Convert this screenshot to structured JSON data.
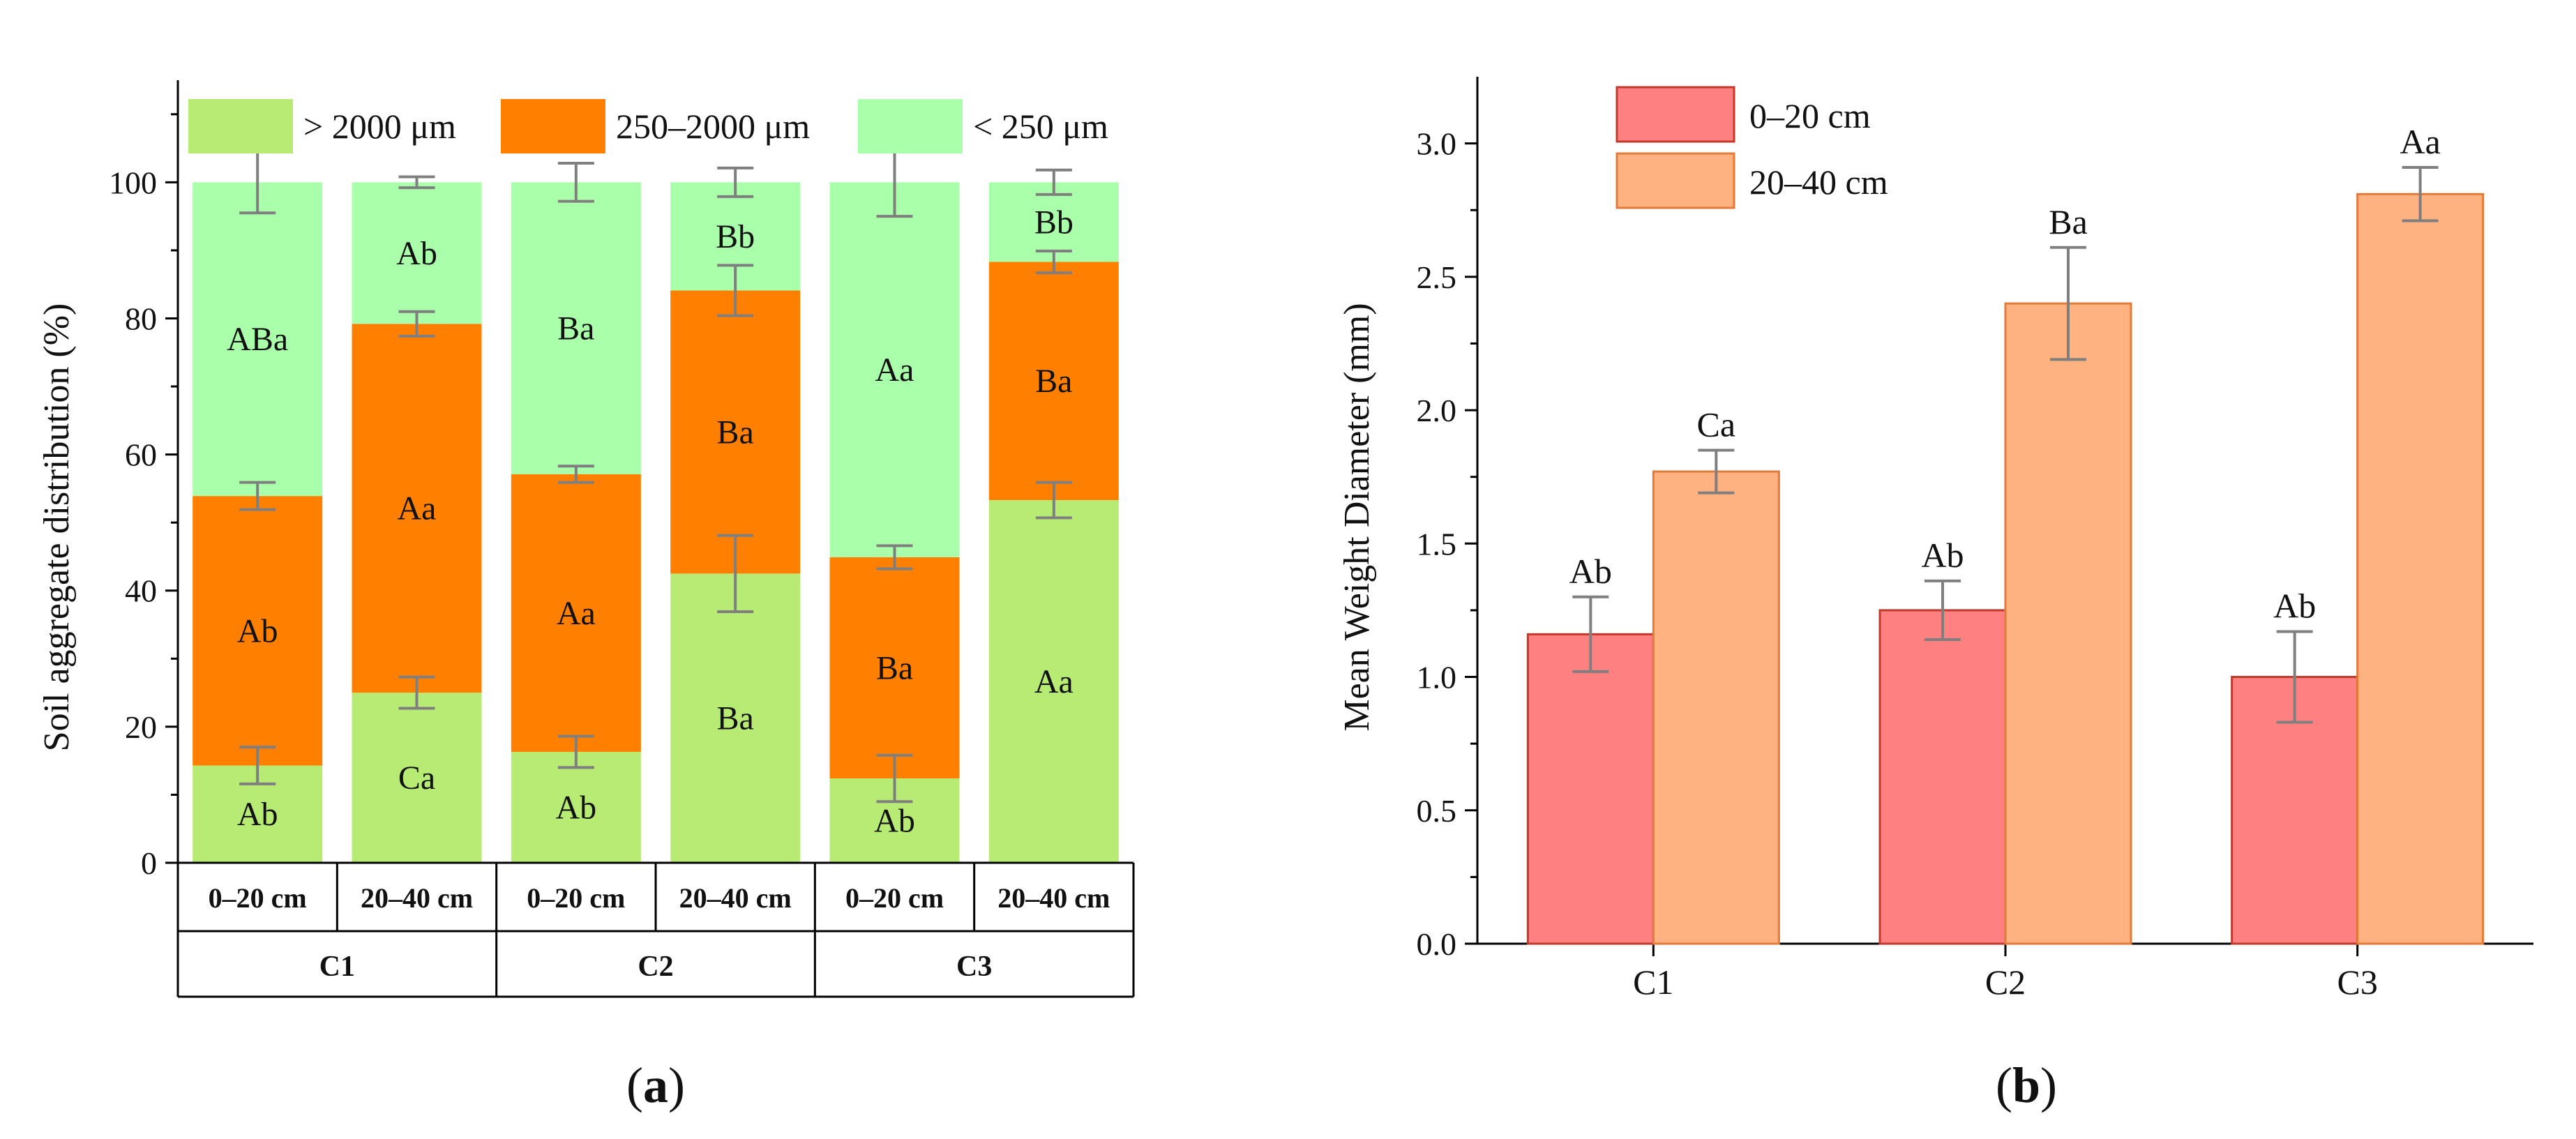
{
  "chart_data": [
    {
      "id": "a",
      "type": "bar",
      "stacked": true,
      "panel_label": "a",
      "ylabel": "Soil aggregate distribution (%)",
      "ylim": [
        0,
        115
      ],
      "yticks": [
        0,
        20,
        40,
        60,
        80,
        100
      ],
      "legend_position": "top",
      "categories": [
        "0–20 cm",
        "20–40 cm",
        "0–20 cm",
        "20–40 cm",
        "0–20 cm",
        "20–40 cm"
      ],
      "groups": [
        "C1",
        "C2",
        "C3"
      ],
      "series": [
        {
          "name": "> 2000 μm",
          "color": "#b8eb73",
          "values": [
            14.3,
            25.0,
            16.3,
            42.5,
            12.4,
            53.3
          ],
          "errors": [
            2.7,
            2.3,
            2.3,
            5.6,
            3.4,
            2.6
          ],
          "letters": [
            "Ab",
            "Ca",
            "Ab",
            "Ba",
            "Ab",
            "Aa"
          ]
        },
        {
          "name": "250–2000 μm",
          "color": "#ff8000",
          "values": [
            39.6,
            54.2,
            40.8,
            41.6,
            32.5,
            35.0
          ],
          "errors": [
            2.0,
            1.8,
            1.2,
            3.7,
            1.7,
            1.6
          ],
          "letters": [
            "Ab",
            "Aa",
            "Aa",
            "Ba",
            "Ba",
            "Ba"
          ]
        },
        {
          "name": "< 250 μm",
          "color": "#aaffaa",
          "values": [
            46.1,
            20.8,
            42.9,
            15.9,
            55.1,
            11.7
          ],
          "errors": [
            4.5,
            0.8,
            2.8,
            2.1,
            5.0,
            1.8
          ],
          "letters": [
            "ABa",
            "Ab",
            "Ba",
            "Bb",
            "Aa",
            "Bb"
          ]
        }
      ]
    },
    {
      "id": "b",
      "type": "bar",
      "panel_label": "b",
      "ylabel": "Mean Weight Diameter (mm)",
      "ylim": [
        0,
        3.25
      ],
      "yticks": [
        0.0,
        0.5,
        1.0,
        1.5,
        2.0,
        2.5,
        3.0
      ],
      "ytick_labels": [
        "0.0",
        "0.5",
        "1.0",
        "1.5",
        "2.0",
        "2.5",
        "3.0"
      ],
      "legend_position": "top-left",
      "categories": [
        "C1",
        "C2",
        "C3"
      ],
      "series": [
        {
          "name": "0–20 cm",
          "color": "#ff8080",
          "edge": "#c0392b",
          "values": [
            1.16,
            1.25,
            1.0
          ],
          "errors": [
            0.14,
            0.11,
            0.17
          ],
          "letters": [
            "Ab",
            "Ab",
            "Ab"
          ]
        },
        {
          "name": "20–40 cm",
          "color": "#ffb27f",
          "edge": "#e07b39",
          "values": [
            1.77,
            2.4,
            2.81
          ],
          "errors": [
            0.08,
            0.21,
            0.1
          ],
          "letters": [
            "Ca",
            "Ba",
            "Aa"
          ]
        }
      ]
    }
  ]
}
